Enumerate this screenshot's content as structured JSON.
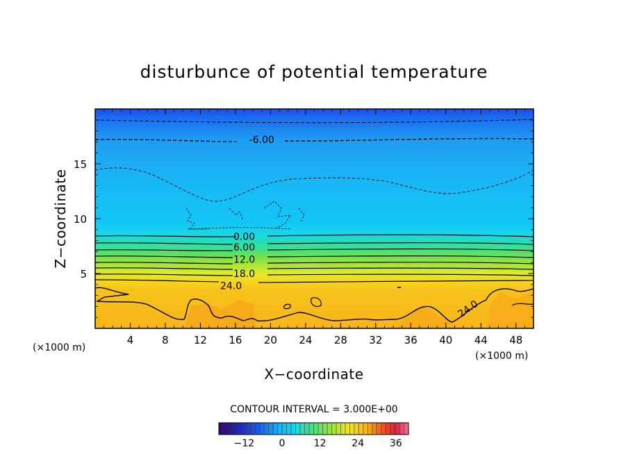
{
  "chart_data": {
    "type": "heatmap",
    "title": "disturbunce of potential temperature",
    "xlabel": "X−coordinate",
    "ylabel": "Z−coordinate",
    "x_unit": "(×1000 m)",
    "y_unit": "(×1000 m)",
    "xlim": [
      0,
      50
    ],
    "ylim": [
      0,
      20
    ],
    "x_ticks": [
      4,
      8,
      12,
      16,
      20,
      24,
      28,
      32,
      36,
      40,
      44,
      48
    ],
    "y_ticks": [
      5,
      10,
      15
    ],
    "x_tick_labels": [
      "4",
      "8",
      "12",
      "16",
      "20",
      "24",
      "28",
      "32",
      "36",
      "40",
      "44",
      "48"
    ],
    "y_tick_labels": [
      "5",
      "10",
      "15"
    ],
    "contour_interval_text": "CONTOUR INTERVAL = 3.000E+00",
    "contour_interval": 3.0,
    "contour_labels": [
      {
        "text": "-6.00",
        "x": 19,
        "z": 17.2
      },
      {
        "text": "0.00",
        "x": 17,
        "z": 8.4
      },
      {
        "text": "6.00",
        "x": 17,
        "z": 7.4
      },
      {
        "text": "12.0",
        "x": 17,
        "z": 6.3
      },
      {
        "text": "18.0",
        "x": 17,
        "z": 5.0
      },
      {
        "text": "24.0",
        "x": 15.5,
        "z": 3.9
      },
      {
        "text": "24.0",
        "x": 42.5,
        "z": 1.8
      }
    ],
    "value_bands": [
      {
        "z_min": 0,
        "z_max": 4.2,
        "value": 27
      },
      {
        "z_min": 4.2,
        "z_max": 5.0,
        "value": 21
      },
      {
        "z_min": 5.0,
        "z_max": 6.2,
        "value": 16
      },
      {
        "z_min": 6.2,
        "z_max": 7.3,
        "value": 10
      },
      {
        "z_min": 7.3,
        "z_max": 8.5,
        "value": 4
      },
      {
        "z_min": 8.5,
        "z_max": 10.5,
        "value": -1
      },
      {
        "z_min": 10.5,
        "z_max": 16.5,
        "value": -4
      },
      {
        "z_min": 16.5,
        "z_max": 18.5,
        "value": -7
      },
      {
        "z_min": 18.5,
        "z_max": 20,
        "value": -9
      }
    ],
    "colorbar": {
      "range": [
        -20,
        40
      ],
      "ticks": [
        -12,
        0,
        12,
        24,
        36
      ],
      "tick_labels": [
        "−12",
        "0",
        "12",
        "24",
        "36"
      ]
    },
    "grid": false,
    "legend": "colorbar-bottom"
  }
}
